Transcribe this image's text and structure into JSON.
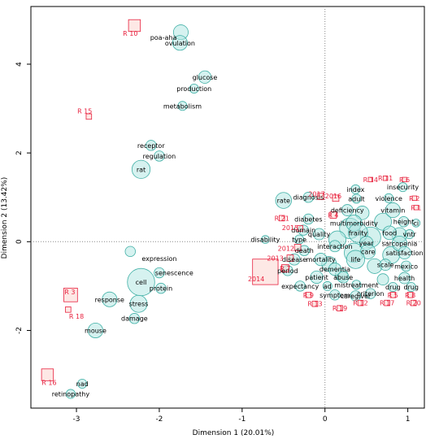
{
  "chart_data": {
    "type": "scatter",
    "xlabel": "Dimension 1 (20.01%)",
    "ylabel": "Dimension 2 (13.42%)",
    "xlim": [
      -3.55,
      1.2
    ],
    "ylim": [
      -3.75,
      5.3
    ],
    "x_ticks": [
      -3,
      -2,
      -1,
      0,
      1
    ],
    "y_ticks": [
      -2,
      0,
      2,
      4
    ],
    "reference_lines": {
      "x": 0,
      "y": 0,
      "style": "dotted"
    },
    "colors": {
      "word_fill": "#b5e8e3",
      "word_stroke": "#40b0a6",
      "row_fill": "#fbd5cf",
      "row_stroke": "#e8213e",
      "row_text": "#e8213e"
    },
    "column_points": [
      {
        "label": "poa-aha",
        "x": -1.74,
        "y": 4.72,
        "r": 1.3,
        "lx": -1.95,
        "ly": 4.6
      },
      {
        "label": "ovulation",
        "x": -1.75,
        "y": 4.48,
        "r": 1.3,
        "lx": -1.75,
        "ly": 4.48
      },
      {
        "label": "glucose",
        "x": -1.45,
        "y": 3.71,
        "r": 1.1,
        "lx": -1.45,
        "ly": 3.71
      },
      {
        "label": "production",
        "x": -1.58,
        "y": 3.45,
        "r": 0.8,
        "lx": -1.58,
        "ly": 3.45
      },
      {
        "label": "metabolism",
        "x": -1.72,
        "y": 3.06,
        "r": 0.8,
        "lx": -1.72,
        "ly": 3.06
      },
      {
        "label": "receptor",
        "x": -2.1,
        "y": 2.17,
        "r": 0.9,
        "lx": -2.1,
        "ly": 2.17
      },
      {
        "label": "regulation",
        "x": -2.0,
        "y": 1.93,
        "r": 0.9,
        "lx": -2.0,
        "ly": 1.93
      },
      {
        "label": "rat",
        "x": -2.22,
        "y": 1.63,
        "r": 1.6,
        "lx": -2.22,
        "ly": 1.63
      },
      {
        "label": "rate",
        "x": -0.5,
        "y": 0.93,
        "r": 1.4,
        "lx": -0.5,
        "ly": 0.93
      },
      {
        "label": "expression",
        "x": -2.35,
        "y": -0.22,
        "r": 0.9,
        "lx": -2.0,
        "ly": -0.38
      },
      {
        "label": "senescence",
        "x": -2.0,
        "y": -0.7,
        "r": 0.9,
        "lx": -1.82,
        "ly": -0.7
      },
      {
        "label": "cell",
        "x": -2.22,
        "y": -0.91,
        "r": 2.4,
        "lx": -2.22,
        "ly": -0.91
      },
      {
        "label": "protein",
        "x": -1.98,
        "y": -1.05,
        "r": 0.9,
        "lx": -1.98,
        "ly": -1.05
      },
      {
        "label": "response",
        "x": -2.6,
        "y": -1.3,
        "r": 1.3,
        "lx": -2.6,
        "ly": -1.3
      },
      {
        "label": "stress",
        "x": -2.25,
        "y": -1.4,
        "r": 1.5,
        "lx": -2.25,
        "ly": -1.4
      },
      {
        "label": "damage",
        "x": -2.3,
        "y": -1.73,
        "r": 0.9,
        "lx": -2.3,
        "ly": -1.73
      },
      {
        "label": "mouse",
        "x": -2.77,
        "y": -2.0,
        "r": 1.3,
        "lx": -2.77,
        "ly": -2.0
      },
      {
        "label": "nad",
        "x": -2.93,
        "y": -3.2,
        "r": 0.8,
        "lx": -2.93,
        "ly": -3.2
      },
      {
        "label": "retinopathy",
        "x": -3.07,
        "y": -3.43,
        "r": 0.8,
        "lx": -3.07,
        "ly": -3.43
      },
      {
        "label": "diagnosis",
        "x": -0.2,
        "y": 1.0,
        "r": 0.9,
        "lx": -0.2,
        "ly": 1.0
      },
      {
        "label": "index",
        "x": 0.37,
        "y": 1.18,
        "r": 0.8,
        "lx": 0.37,
        "ly": 1.18
      },
      {
        "label": "adult",
        "x": 0.38,
        "y": 0.97,
        "r": 0.8,
        "lx": 0.38,
        "ly": 0.97
      },
      {
        "label": "insecurity",
        "x": 0.94,
        "y": 1.23,
        "r": 0.8,
        "lx": 0.94,
        "ly": 1.23
      },
      {
        "label": "violence",
        "x": 0.77,
        "y": 0.98,
        "r": 0.8,
        "lx": 0.77,
        "ly": 0.98
      },
      {
        "label": "deficiency",
        "x": 0.27,
        "y": 0.71,
        "r": 1.0,
        "lx": 0.27,
        "ly": 0.71
      },
      {
        "label": "vitamin",
        "x": 0.82,
        "y": 0.71,
        "r": 1.3,
        "lx": 0.82,
        "ly": 0.71
      },
      {
        "label": "diabetes",
        "x": -0.2,
        "y": 0.51,
        "r": 0.9,
        "lx": -0.2,
        "ly": 0.51
      },
      {
        "label": "multimorbidity",
        "x": 0.35,
        "y": 0.42,
        "r": 1.4,
        "lx": 0.35,
        "ly": 0.42
      },
      {
        "label": "height",
        "x": 0.95,
        "y": 0.45,
        "r": 0.9,
        "lx": 0.95,
        "ly": 0.45
      },
      {
        "label": "ci",
        "x": 1.1,
        "y": 0.42,
        "r": 0.7,
        "lx": 1.1,
        "ly": 0.42
      },
      {
        "label": "domain",
        "x": -0.26,
        "y": 0.26,
        "r": 0.9,
        "lx": -0.26,
        "ly": 0.26
      },
      {
        "label": "quality",
        "x": -0.07,
        "y": 0.17,
        "r": 1.0,
        "lx": -0.07,
        "ly": 0.17
      },
      {
        "label": "frailty",
        "x": 0.4,
        "y": 0.2,
        "r": 1.7,
        "lx": 0.4,
        "ly": 0.2
      },
      {
        "label": "food",
        "x": 0.78,
        "y": 0.2,
        "r": 1.2,
        "lx": 0.78,
        "ly": 0.2
      },
      {
        "label": "vntr",
        "x": 1.02,
        "y": 0.17,
        "r": 0.8,
        "lx": 1.02,
        "ly": 0.17
      },
      {
        "label": "disability",
        "x": -0.72,
        "y": 0.05,
        "r": 0.7,
        "lx": -0.72,
        "ly": 0.05
      },
      {
        "label": "type",
        "x": -0.31,
        "y": 0.05,
        "r": 0.8,
        "lx": -0.31,
        "ly": 0.05
      },
      {
        "label": "interaction",
        "x": 0.12,
        "y": -0.1,
        "r": 1.0,
        "lx": 0.12,
        "ly": -0.1
      },
      {
        "label": "year",
        "x": 0.5,
        "y": -0.03,
        "r": 1.2,
        "lx": 0.5,
        "ly": -0.03
      },
      {
        "label": "sarcopenia",
        "x": 0.9,
        "y": -0.04,
        "r": 1.3,
        "lx": 0.9,
        "ly": -0.04
      },
      {
        "label": "death",
        "x": -0.25,
        "y": -0.2,
        "r": 0.9,
        "lx": -0.25,
        "ly": -0.2
      },
      {
        "label": "care",
        "x": 0.52,
        "y": -0.22,
        "r": 1.3,
        "lx": 0.52,
        "ly": -0.22
      },
      {
        "label": "satisfaction",
        "x": 0.96,
        "y": -0.25,
        "r": 1.1,
        "lx": 0.96,
        "ly": -0.25
      },
      {
        "label": "disease",
        "x": -0.37,
        "y": -0.4,
        "r": 1.0,
        "lx": -0.37,
        "ly": -0.4
      },
      {
        "label": "mortality",
        "x": -0.05,
        "y": -0.4,
        "r": 1.1,
        "lx": -0.05,
        "ly": -0.4
      },
      {
        "label": "life",
        "x": 0.37,
        "y": -0.4,
        "r": 1.6,
        "lx": 0.37,
        "ly": -0.4
      },
      {
        "label": "scale",
        "x": 0.73,
        "y": -0.52,
        "r": 1.0,
        "lx": 0.73,
        "ly": -0.52
      },
      {
        "label": "mexico",
        "x": 0.98,
        "y": -0.55,
        "r": 0.9,
        "lx": 0.98,
        "ly": -0.55
      },
      {
        "label": "period",
        "x": -0.45,
        "y": -0.65,
        "r": 0.9,
        "lx": -0.45,
        "ly": -0.65
      },
      {
        "label": "dementia",
        "x": 0.12,
        "y": -0.62,
        "r": 1.1,
        "lx": 0.12,
        "ly": -0.62
      },
      {
        "label": "patient",
        "x": -0.1,
        "y": -0.8,
        "r": 1.1,
        "lx": -0.1,
        "ly": -0.8
      },
      {
        "label": "abuse",
        "x": 0.22,
        "y": -0.8,
        "r": 1.0,
        "lx": 0.22,
        "ly": -0.8
      },
      {
        "label": "health",
        "x": 0.96,
        "y": -0.82,
        "r": 1.0,
        "lx": 0.96,
        "ly": -0.82
      },
      {
        "label": "expectancy",
        "x": -0.3,
        "y": -1.0,
        "r": 0.9,
        "lx": -0.3,
        "ly": -1.0
      },
      {
        "label": "ad",
        "x": 0.03,
        "y": -1.0,
        "r": 0.8,
        "lx": 0.03,
        "ly": -1.0
      },
      {
        "label": "mistreatment",
        "x": 0.38,
        "y": -0.97,
        "r": 0.8,
        "lx": 0.38,
        "ly": -0.97
      },
      {
        "label": "drug",
        "x": 0.82,
        "y": -1.02,
        "r": 0.8,
        "lx": 0.82,
        "ly": -1.02
      },
      {
        "label": "drug",
        "x": 1.04,
        "y": -1.02,
        "r": 0.8,
        "lx": 1.04,
        "ly": -1.02
      },
      {
        "label": "caregiver",
        "x": 0.37,
        "y": -1.22,
        "r": 0.9,
        "lx": 0.37,
        "ly": -1.22
      },
      {
        "label": "symptom",
        "x": 0.12,
        "y": -1.2,
        "r": 0.9,
        "lx": 0.12,
        "ly": -1.2
      },
      {
        "label": "criterion",
        "x": 0.55,
        "y": -1.17,
        "r": 0.9,
        "lx": 0.55,
        "ly": -1.17
      }
    ],
    "row_points": [
      {
        "label": "R 10",
        "x": -2.3,
        "y": 4.87,
        "s": 1.3,
        "lx": -2.35,
        "ly": 4.7
      },
      {
        "label": "R 15",
        "x": -2.85,
        "y": 2.82,
        "s": 0.6,
        "lx": -2.9,
        "ly": 2.95
      },
      {
        "label": "R 3",
        "x": -3.07,
        "y": -1.2,
        "s": 1.5,
        "lx": -3.08,
        "ly": -1.13
      },
      {
        "label": "R 18",
        "x": -3.1,
        "y": -1.53,
        "s": 0.6,
        "lx": -3.0,
        "ly": -1.68
      },
      {
        "label": "R 16",
        "x": -3.35,
        "y": -3.0,
        "s": 1.3,
        "lx": -3.33,
        "ly": -3.17
      },
      {
        "label": "2014",
        "x": -0.72,
        "y": -0.68,
        "s": 2.8,
        "lx": -0.83,
        "ly": -0.84
      },
      {
        "label": "2017",
        "x": -0.05,
        "y": 1.02,
        "s": 0.7,
        "lx": -0.1,
        "ly": 1.08
      },
      {
        "label": "2016",
        "x": 0.13,
        "y": 0.98,
        "s": 0.7,
        "lx": 0.1,
        "ly": 1.03
      },
      {
        "label": "2015",
        "x": -0.3,
        "y": 0.3,
        "s": 0.6,
        "lx": -0.42,
        "ly": 0.32
      },
      {
        "label": "2013",
        "x": -0.42,
        "y": -0.37,
        "s": 0.7,
        "lx": -0.6,
        "ly": -0.37
      },
      {
        "label": "2012",
        "x": -0.33,
        "y": -0.13,
        "s": 0.7,
        "lx": -0.47,
        "ly": -0.15
      },
      {
        "label": "R 14",
        "x": 0.55,
        "y": 1.4,
        "s": 0.5,
        "lx": 0.55,
        "ly": 1.4
      },
      {
        "label": "R 11",
        "x": 0.73,
        "y": 1.43,
        "s": 0.5,
        "lx": 0.73,
        "ly": 1.43
      },
      {
        "label": "R 6",
        "x": 0.96,
        "y": 1.4,
        "s": 0.5,
        "lx": 0.96,
        "ly": 1.4
      },
      {
        "label": "R 2",
        "x": 1.08,
        "y": 0.98,
        "s": 0.5,
        "lx": 1.08,
        "ly": 0.98
      },
      {
        "label": "R 1",
        "x": 1.1,
        "y": 0.77,
        "s": 0.5,
        "lx": 1.1,
        "ly": 0.77
      },
      {
        "label": "R 4",
        "x": 0.1,
        "y": 0.6,
        "s": 0.7,
        "lx": 0.1,
        "ly": 0.6
      },
      {
        "label": "R 21",
        "x": -0.52,
        "y": 0.53,
        "s": 0.6,
        "lx": -0.52,
        "ly": 0.53
      },
      {
        "label": "R 7",
        "x": -0.48,
        "y": -0.6,
        "s": 0.8,
        "lx": -0.48,
        "ly": -0.6
      },
      {
        "label": "R 9",
        "x": -0.2,
        "y": -1.2,
        "s": 0.6,
        "lx": -0.2,
        "ly": -1.2
      },
      {
        "label": "R 13",
        "x": -0.12,
        "y": -1.4,
        "s": 0.6,
        "lx": -0.12,
        "ly": -1.4
      },
      {
        "label": "R 19",
        "x": 0.18,
        "y": -1.5,
        "s": 0.6,
        "lx": 0.18,
        "ly": -1.5
      },
      {
        "label": "R 12",
        "x": 0.43,
        "y": -1.38,
        "s": 0.6,
        "lx": 0.43,
        "ly": -1.38
      },
      {
        "label": "R 17",
        "x": 0.75,
        "y": -1.38,
        "s": 0.6,
        "lx": 0.75,
        "ly": -1.38
      },
      {
        "label": "R 5",
        "x": 0.82,
        "y": -1.2,
        "s": 0.6,
        "lx": 0.82,
        "ly": -1.2
      },
      {
        "label": "R 8",
        "x": 1.03,
        "y": -1.2,
        "s": 0.6,
        "lx": 1.03,
        "ly": -1.2
      },
      {
        "label": "R 20",
        "x": 1.07,
        "y": -1.38,
        "s": 0.6,
        "lx": 1.07,
        "ly": -1.38
      }
    ],
    "cluster_points": [
      {
        "x": 0.3,
        "y": 0.3,
        "r": 1.8
      },
      {
        "x": 0.55,
        "y": 0.1,
        "r": 1.8
      },
      {
        "x": 0.35,
        "y": -0.25,
        "r": 1.7
      },
      {
        "x": 0.7,
        "y": 0.45,
        "r": 1.5
      },
      {
        "x": 0.15,
        "y": 0.05,
        "r": 1.5
      },
      {
        "x": 0.8,
        "y": -0.3,
        "r": 1.5
      },
      {
        "x": 0.6,
        "y": -0.55,
        "r": 1.3
      },
      {
        "x": 0.05,
        "y": -0.5,
        "r": 1.3
      },
      {
        "x": 0.9,
        "y": 0.15,
        "r": 1.3
      },
      {
        "x": 0.45,
        "y": 0.65,
        "r": 1.2
      },
      {
        "x": 0.2,
        "y": -0.75,
        "r": 1.1
      },
      {
        "x": 0.7,
        "y": -0.85,
        "r": 1.0
      }
    ]
  }
}
